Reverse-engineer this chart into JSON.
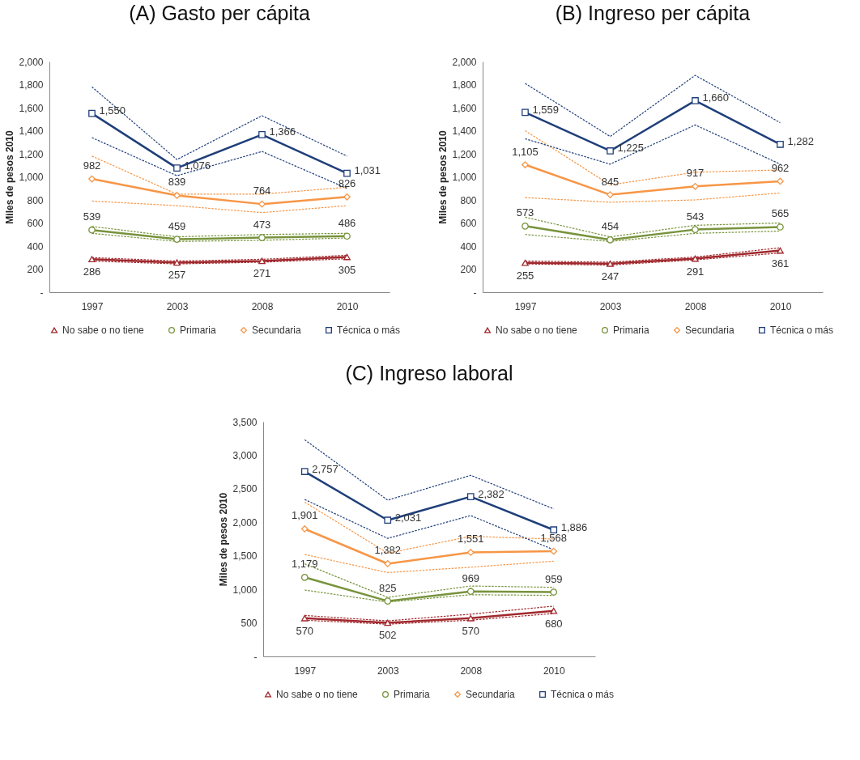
{
  "chart_data": [
    {
      "type": "line",
      "title": "(A) Gasto per cápita",
      "ylabel": "Miles de pesos 2010",
      "categories": [
        "1997",
        "2003",
        "2008",
        "2010"
      ],
      "ylim": [
        0,
        2000
      ],
      "yticks": [
        {
          "value": 0,
          "label": "-"
        },
        200,
        400,
        600,
        800,
        {
          "value": 1000,
          "label": "1,000"
        },
        {
          "value": 1200,
          "label": "1,200"
        },
        {
          "value": 1400,
          "label": "1,400"
        },
        {
          "value": 1600,
          "label": "1,600"
        },
        {
          "value": 1800,
          "label": "1,800"
        },
        {
          "value": 2000,
          "label": "2,000"
        }
      ],
      "grid": false,
      "legend": "bottom",
      "series": [
        {
          "name": "No sabe o no tiene",
          "color": "#a0282d",
          "marker": "triangle",
          "line_style": "solid",
          "values": [
            286,
            257,
            271,
            305
          ],
          "value_labels": [
            "286",
            "257",
            "271",
            "305"
          ]
        },
        {
          "name": "Primaria",
          "color": "#77933c",
          "marker": "circle",
          "line_style": "solid",
          "values": [
            539,
            459,
            473,
            486
          ],
          "value_labels": [
            "539",
            "459",
            "473",
            "486"
          ]
        },
        {
          "name": "Secundaria",
          "color": "#f79646",
          "marker": "diamond",
          "line_style": "solid",
          "values": [
            982,
            839,
            764,
            826
          ],
          "value_labels": [
            "982",
            "839",
            "764",
            "826"
          ]
        },
        {
          "name": "Técnica o más",
          "color": "#1f3f7a",
          "marker": "square",
          "line_style": "solid",
          "values": [
            1550,
            1076,
            1366,
            1031
          ],
          "value_labels": [
            "1,550",
            "1,076",
            "1,366",
            "1,031"
          ]
        },
        {
          "color": "#a0282d",
          "line_style": "dotted",
          "values": [
            270,
            245,
            260,
            290
          ]
        },
        {
          "color": "#a0282d",
          "line_style": "dotted",
          "values": [
            300,
            270,
            285,
            320
          ]
        },
        {
          "color": "#77933c",
          "line_style": "dotted",
          "values": [
            510,
            440,
            450,
            470
          ]
        },
        {
          "color": "#77933c",
          "line_style": "dotted",
          "values": [
            570,
            480,
            500,
            510
          ]
        },
        {
          "color": "#f79646",
          "line_style": "dotted",
          "values": [
            790,
            750,
            690,
            750
          ]
        },
        {
          "color": "#f79646",
          "line_style": "dotted",
          "values": [
            1180,
            850,
            850,
            910
          ]
        },
        {
          "color": "#1f3f7a",
          "line_style": "dotted",
          "values": [
            1340,
            1010,
            1220,
            900
          ]
        },
        {
          "color": "#1f3f7a",
          "line_style": "dotted",
          "values": [
            1780,
            1150,
            1530,
            1180
          ]
        }
      ]
    },
    {
      "type": "line",
      "title": "(B) Ingreso per cápita",
      "ylabel": "Miles de pesos 2010",
      "categories": [
        "1997",
        "2003",
        "2008",
        "2010"
      ],
      "ylim": [
        0,
        2000
      ],
      "yticks": [
        {
          "value": 0,
          "label": "-"
        },
        200,
        400,
        600,
        800,
        {
          "value": 1000,
          "label": "1,000"
        },
        {
          "value": 1200,
          "label": "1,200"
        },
        {
          "value": 1400,
          "label": "1,400"
        },
        {
          "value": 1600,
          "label": "1,600"
        },
        {
          "value": 1800,
          "label": "1,800"
        },
        {
          "value": 2000,
          "label": "2,000"
        }
      ],
      "grid": false,
      "legend": "bottom",
      "series": [
        {
          "name": "No sabe o no tiene",
          "color": "#a0282d",
          "marker": "triangle",
          "line_style": "solid",
          "values": [
            255,
            247,
            291,
            361
          ],
          "value_labels": [
            "255",
            "247",
            "291",
            "361"
          ]
        },
        {
          "name": "Primaria",
          "color": "#77933c",
          "marker": "circle",
          "line_style": "solid",
          "values": [
            573,
            454,
            543,
            565
          ],
          "value_labels": [
            "573",
            "454",
            "543",
            "565"
          ]
        },
        {
          "name": "Secundaria",
          "color": "#f79646",
          "marker": "diamond",
          "line_style": "solid",
          "values": [
            1105,
            845,
            917,
            962
          ],
          "value_labels": [
            "1,105",
            "845",
            "917",
            "962"
          ]
        },
        {
          "name": "Técnica o más",
          "color": "#1f3f7a",
          "marker": "square",
          "line_style": "solid",
          "values": [
            1559,
            1225,
            1660,
            1282
          ],
          "value_labels": [
            "1,559",
            "1,225",
            "1,660",
            "1,282"
          ]
        },
        {
          "color": "#a0282d",
          "line_style": "dotted",
          "values": [
            245,
            235,
            280,
            340
          ]
        },
        {
          "color": "#a0282d",
          "line_style": "dotted",
          "values": [
            270,
            260,
            305,
            385
          ]
        },
        {
          "color": "#77933c",
          "line_style": "dotted",
          "values": [
            500,
            440,
            510,
            530
          ]
        },
        {
          "color": "#77933c",
          "line_style": "dotted",
          "values": [
            650,
            480,
            580,
            600
          ]
        },
        {
          "color": "#f79646",
          "line_style": "dotted",
          "values": [
            820,
            780,
            800,
            860
          ]
        },
        {
          "color": "#f79646",
          "line_style": "dotted",
          "values": [
            1400,
            930,
            1040,
            1060
          ]
        },
        {
          "color": "#1f3f7a",
          "line_style": "dotted",
          "values": [
            1330,
            1110,
            1450,
            1110
          ]
        },
        {
          "color": "#1f3f7a",
          "line_style": "dotted",
          "values": [
            1810,
            1350,
            1880,
            1470
          ]
        }
      ]
    },
    {
      "type": "line",
      "title": "(C) Ingreso laboral",
      "ylabel": "Miles de pesos 2010",
      "categories": [
        "1997",
        "2003",
        "2008",
        "2010"
      ],
      "ylim": [
        0,
        3500
      ],
      "yticks": [
        {
          "value": 0,
          "label": "-"
        },
        500,
        {
          "value": 1000,
          "label": "1,000"
        },
        {
          "value": 1500,
          "label": "1,500"
        },
        {
          "value": 2000,
          "label": "2,000"
        },
        {
          "value": 2500,
          "label": "2,500"
        },
        {
          "value": 3000,
          "label": "3,000"
        },
        {
          "value": 3500,
          "label": "3,500"
        }
      ],
      "grid": false,
      "legend": "bottom",
      "series": [
        {
          "name": "No sabe o no tiene",
          "color": "#a0282d",
          "marker": "triangle",
          "line_style": "solid",
          "values": [
            570,
            502,
            570,
            680
          ],
          "value_labels": [
            "570",
            "502",
            "570",
            "680"
          ]
        },
        {
          "name": "Primaria",
          "color": "#77933c",
          "marker": "circle",
          "line_style": "solid",
          "values": [
            1179,
            825,
            969,
            959
          ],
          "value_labels": [
            "1,179",
            "825",
            "969",
            "959"
          ]
        },
        {
          "name": "Secundaria",
          "color": "#f79646",
          "marker": "diamond",
          "line_style": "solid",
          "values": [
            1901,
            1382,
            1551,
            1568
          ],
          "value_labels": [
            "1,901",
            "1,382",
            "1,551",
            "1,568"
          ]
        },
        {
          "name": "Técnica o más",
          "color": "#1f3f7a",
          "marker": "square",
          "line_style": "solid",
          "values": [
            2757,
            2031,
            2382,
            1886
          ],
          "value_labels": [
            "2,757",
            "2,031",
            "2,382",
            "1,886"
          ]
        },
        {
          "color": "#a0282d",
          "line_style": "dotted",
          "values": [
            540,
            480,
            540,
            640
          ]
        },
        {
          "color": "#a0282d",
          "line_style": "dotted",
          "values": [
            610,
            530,
            630,
            750
          ]
        },
        {
          "color": "#77933c",
          "line_style": "dotted",
          "values": [
            990,
            810,
            920,
            910
          ]
        },
        {
          "color": "#77933c",
          "line_style": "dotted",
          "values": [
            1380,
            880,
            1050,
            1030
          ]
        },
        {
          "color": "#f79646",
          "line_style": "dotted",
          "values": [
            1520,
            1250,
            1330,
            1420
          ]
        },
        {
          "color": "#f79646",
          "line_style": "dotted",
          "values": [
            2300,
            1540,
            1790,
            1750
          ]
        },
        {
          "color": "#1f3f7a",
          "line_style": "dotted",
          "values": [
            2340,
            1760,
            2100,
            1590
          ]
        },
        {
          "color": "#1f3f7a",
          "line_style": "dotted",
          "values": [
            3230,
            2330,
            2700,
            2200
          ]
        }
      ]
    }
  ]
}
